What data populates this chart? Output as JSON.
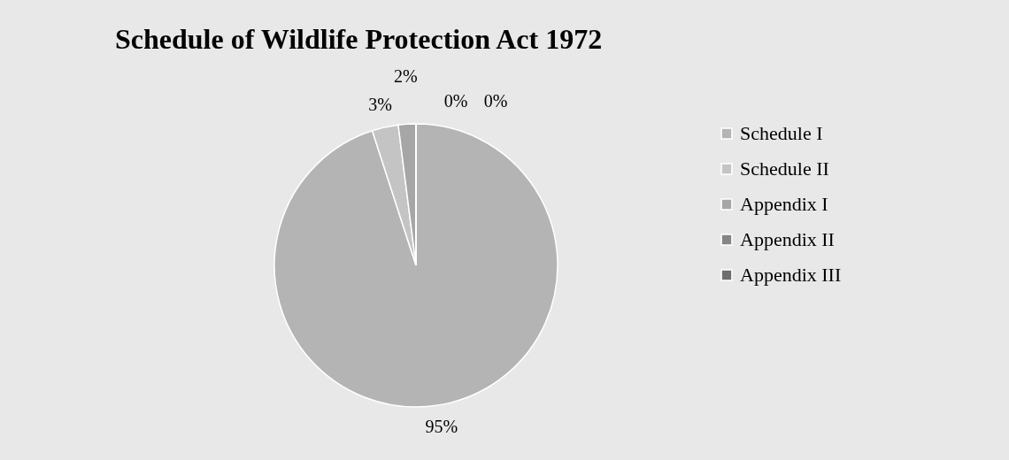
{
  "chart_data": {
    "type": "pie",
    "title": "Schedule of Wildlife Protection Act 1972",
    "categories": [
      "Schedule I",
      "Schedule II",
      "Appendix I",
      "Appendix II",
      "Appendix III"
    ],
    "values": [
      95,
      3,
      2,
      0,
      0
    ],
    "value_labels": [
      "95%",
      "3%",
      "2%",
      "0%",
      "0%"
    ],
    "colors": [
      "#b4b4b4",
      "#c4c4c4",
      "#a6a6a6",
      "#858585",
      "#6e6e6e"
    ],
    "legend": "right"
  }
}
